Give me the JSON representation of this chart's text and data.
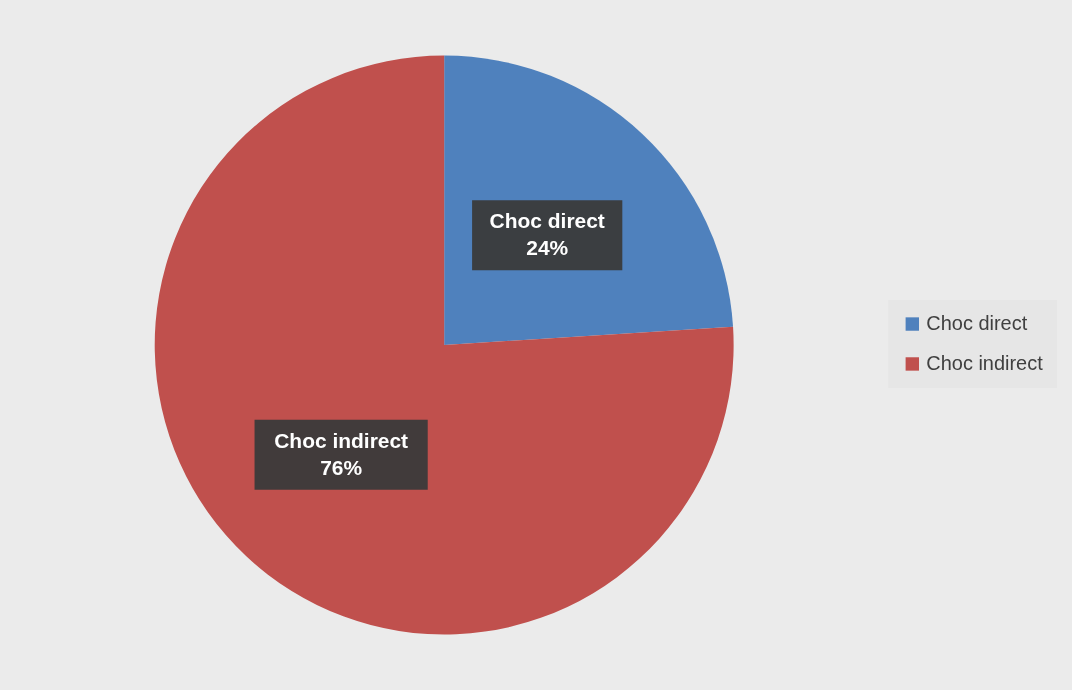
{
  "chart_data": {
    "type": "pie",
    "categories": [
      "Choc direct",
      "Choc indirect"
    ],
    "values": [
      24,
      76
    ],
    "colors": [
      "#4f81bd",
      "#c0504d"
    ],
    "value_labels": [
      "24%",
      "76%"
    ],
    "legend": "right"
  }
}
